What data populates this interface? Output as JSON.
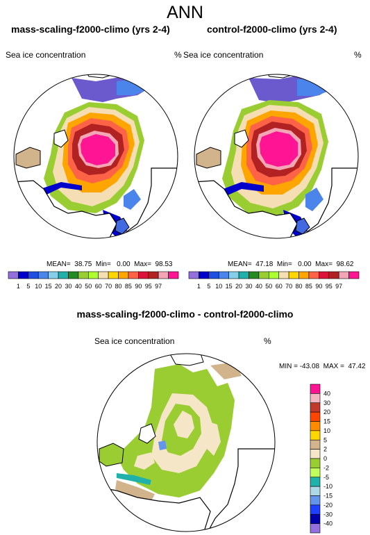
{
  "main_title": "ANN",
  "panel_left": {
    "title": "mass-scaling-f2000-climo (yrs 2-4)",
    "variable": "Sea ice concentration",
    "units": "%",
    "stats": "MEAN=  38.75  Min=   0.00  Max=  98.53"
  },
  "panel_right": {
    "title": "control-f2000-climo (yrs 2-4)",
    "variable": "Sea ice concentration",
    "units": "%",
    "stats": "MEAN=  47.18  Min=   0.00  Max=  98.62"
  },
  "panel_diff": {
    "title": "mass-scaling-f2000-climo - control-f2000-climo",
    "variable": "Sea ice concentration",
    "units": "%",
    "stats": "MIN = -43.08  MAX =  47.42"
  },
  "colorbar_abs": {
    "labels": [
      "1",
      "5",
      "10",
      "15",
      "20",
      "30",
      "40",
      "50",
      "60",
      "70",
      "80",
      "85",
      "90",
      "95",
      "97"
    ],
    "colors": [
      "#9370db",
      "#0000cd",
      "#1f4fe0",
      "#4b84ea",
      "#87ceeb",
      "#20b2aa",
      "#228b22",
      "#9acd32",
      "#adff2f",
      "#f5deb3",
      "#ffd700",
      "#ffa500",
      "#ff6347",
      "#dc143c",
      "#b22222",
      "#f4a6b5",
      "#ff1493"
    ]
  },
  "colorbar_diff": {
    "labels": [
      "40",
      "30",
      "20",
      "15",
      "10",
      "5",
      "2",
      "0",
      "-2",
      "-5",
      "-10",
      "-15",
      "-20",
      "-30",
      "-40"
    ],
    "colors": [
      "#ff1493",
      "#f4b6c2",
      "#c0392b",
      "#ff4500",
      "#ff8c00",
      "#ffd700",
      "#d2b48c",
      "#f5e6c8",
      "#9acd32",
      "#c0ff5c",
      "#20b2aa",
      "#add8e6",
      "#6495ed",
      "#1e40ff",
      "#0000aa",
      "#9370db"
    ]
  }
}
